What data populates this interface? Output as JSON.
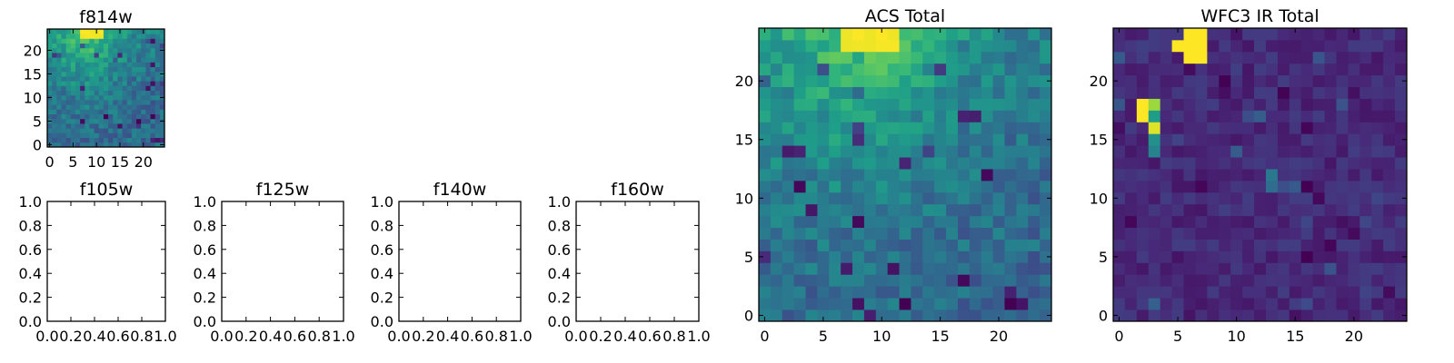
{
  "chart_data": [
    {
      "type": "heatmap",
      "title": "f814w",
      "xlim": [
        -0.5,
        24.5
      ],
      "ylim": [
        -0.5,
        24.5
      ],
      "xticks": [
        0,
        5,
        10,
        15,
        20
      ],
      "yticks": [
        0,
        5,
        10,
        15,
        20
      ],
      "xtick_labels": [
        "0",
        "5",
        "10",
        "15",
        "20"
      ],
      "ytick_labels": [
        "0",
        "5",
        "10",
        "15",
        "20"
      ],
      "grid": false,
      "colormap": "viridis",
      "pattern": "bright-top",
      "size": [
        25,
        25
      ]
    },
    {
      "type": "scatter",
      "title": "f105w",
      "xlim": [
        0,
        1
      ],
      "ylim": [
        0,
        1
      ],
      "xticks": [
        0,
        0.2,
        0.4,
        0.6,
        0.8,
        1.0
      ],
      "yticks": [
        0,
        0.2,
        0.4,
        0.6,
        0.8,
        1.0
      ],
      "xtick_labels": [
        "0.0",
        "0.2",
        "0.4",
        "0.6",
        "0.8",
        "1.0"
      ],
      "ytick_labels": [
        "0.0",
        "0.2",
        "0.4",
        "0.6",
        "0.8",
        "1.0"
      ],
      "grid": false,
      "empty": true
    },
    {
      "type": "scatter",
      "title": "f125w",
      "xlim": [
        0,
        1
      ],
      "ylim": [
        0,
        1
      ],
      "xticks": [
        0,
        0.2,
        0.4,
        0.6,
        0.8,
        1.0
      ],
      "yticks": [
        0,
        0.2,
        0.4,
        0.6,
        0.8,
        1.0
      ],
      "xtick_labels": [
        "0.0",
        "0.2",
        "0.4",
        "0.6",
        "0.8",
        "1.0"
      ],
      "ytick_labels": [
        "0.0",
        "0.2",
        "0.4",
        "0.6",
        "0.8",
        "1.0"
      ],
      "grid": false,
      "empty": true
    },
    {
      "type": "scatter",
      "title": "f140w",
      "xlim": [
        0,
        1
      ],
      "ylim": [
        0,
        1
      ],
      "xticks": [
        0,
        0.2,
        0.4,
        0.6,
        0.8,
        1.0
      ],
      "yticks": [
        0,
        0.2,
        0.4,
        0.6,
        0.8,
        1.0
      ],
      "xtick_labels": [
        "0.0",
        "0.2",
        "0.4",
        "0.6",
        "0.8",
        "1.0"
      ],
      "ytick_labels": [
        "0.0",
        "0.2",
        "0.4",
        "0.6",
        "0.8",
        "1.0"
      ],
      "grid": false,
      "empty": true
    },
    {
      "type": "scatter",
      "title": "f160w",
      "xlim": [
        0,
        1
      ],
      "ylim": [
        0,
        1
      ],
      "xticks": [
        0,
        0.2,
        0.4,
        0.6,
        0.8,
        1.0
      ],
      "yticks": [
        0,
        0.2,
        0.4,
        0.6,
        0.8,
        1.0
      ],
      "xtick_labels": [
        "0.0",
        "0.2",
        "0.4",
        "0.6",
        "0.8",
        "1.0"
      ],
      "ytick_labels": [
        "0.0",
        "0.2",
        "0.4",
        "0.6",
        "0.8",
        "1.0"
      ],
      "grid": false,
      "empty": true
    },
    {
      "type": "heatmap",
      "title": "ACS Total",
      "xlim": [
        -0.5,
        24.5
      ],
      "ylim": [
        -0.5,
        24.5
      ],
      "xticks": [
        0,
        5,
        10,
        15,
        20
      ],
      "yticks": [
        0,
        5,
        10,
        15,
        20
      ],
      "xtick_labels": [
        "0",
        "5",
        "10",
        "15",
        "20"
      ],
      "ytick_labels": [
        "0",
        "5",
        "10",
        "15",
        "20"
      ],
      "grid": false,
      "colormap": "viridis",
      "pattern": "bright-top",
      "size": [
        25,
        25
      ]
    },
    {
      "type": "heatmap",
      "title": "WFC3 IR Total",
      "xlim": [
        -0.5,
        24.5
      ],
      "ylim": [
        -0.5,
        24.5
      ],
      "xticks": [
        0,
        5,
        10,
        15,
        20
      ],
      "yticks": [
        0,
        5,
        10,
        15,
        20
      ],
      "xtick_labels": [
        "0",
        "5",
        "10",
        "15",
        "20"
      ],
      "ytick_labels": [
        "0",
        "5",
        "10",
        "15",
        "20"
      ],
      "grid": false,
      "colormap": "viridis",
      "pattern": "dark-with-hot-pixels",
      "size": [
        25,
        25
      ]
    }
  ]
}
